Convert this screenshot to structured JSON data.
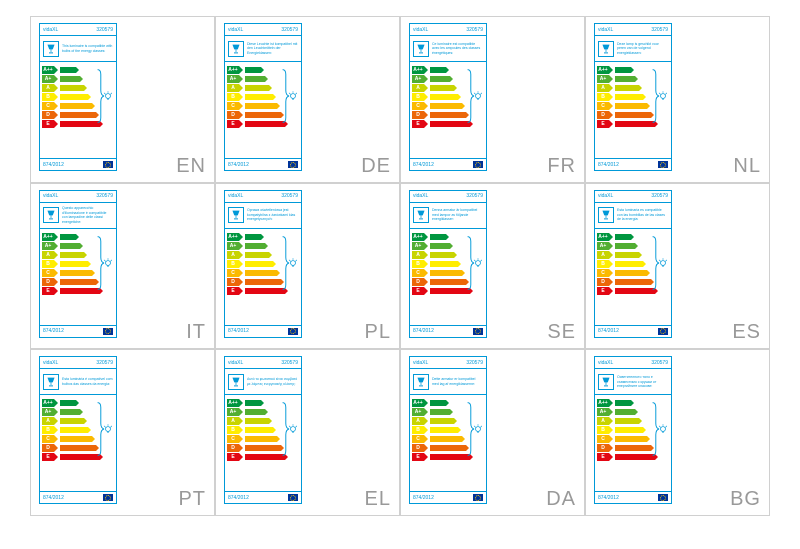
{
  "brand": "vidaXL",
  "product_code": "320579",
  "regulation": "874/2012",
  "energy_classes": [
    {
      "label": "A++",
      "badge_color": "#009640",
      "arrow_color": "#009640",
      "arrow_width": 16
    },
    {
      "label": "A+",
      "badge_color": "#52ae32",
      "arrow_color": "#52ae32",
      "arrow_width": 20
    },
    {
      "label": "A",
      "badge_color": "#c8d400",
      "arrow_color": "#c8d400",
      "arrow_width": 24
    },
    {
      "label": "B",
      "badge_color": "#ffed00",
      "arrow_color": "#ffed00",
      "arrow_width": 28
    },
    {
      "label": "C",
      "badge_color": "#fbba00",
      "arrow_color": "#fbba00",
      "arrow_width": 32
    },
    {
      "label": "D",
      "badge_color": "#ec6608",
      "arrow_color": "#ec6608",
      "arrow_width": 36
    },
    {
      "label": "E",
      "badge_color": "#e30613",
      "arrow_color": "#e30613",
      "arrow_width": 40
    }
  ],
  "cards": [
    {
      "lang": "EN",
      "text": "This luminaire is compatible with bulbs of the energy classes:"
    },
    {
      "lang": "DE",
      "text": "Diese Leuchte ist kompatibel mit den Leuchtmitteln der Energieklassen:"
    },
    {
      "lang": "FR",
      "text": "Ce luminaire est compatible avec les ampoules des classes énergétiques:"
    },
    {
      "lang": "NL",
      "text": "Deze lamp is geschikt voor peren van de volgend energieklassen:"
    },
    {
      "lang": "IT",
      "text": "Questo apparecchio d'illuminazione è compatibile con lampadine delle classi energetiche:"
    },
    {
      "lang": "PL",
      "text": "Oprawa oświetleniowa jest kompatybilna z żarówkami klas energetycznych:"
    },
    {
      "lang": "SE",
      "text": "Denna armatur är kompatibel med lampor av följande energiklasser:"
    },
    {
      "lang": "ES",
      "text": "Esta luminaria es compatible con las bombillas de las clases de la energía:"
    },
    {
      "lang": "PT",
      "text": "Esta luminária é compatível com bulbos das classes da energia:"
    },
    {
      "lang": "EL",
      "text": "Αυτό το φωτιστικό είναι συμβατό με λάμπες ενεργειακής κλάσης:"
    },
    {
      "lang": "DA",
      "text": "Dette armatur er kompatibel med lag af energiklasserne:"
    },
    {
      "lang": "BG",
      "text": "Осветителното тяло е съвместимо с крушки от енергийните класове:"
    }
  ],
  "colors": {
    "border": "#0099d8",
    "cell_border": "#d0d0d0",
    "lang_text": "#999999",
    "eu_blue": "#003399",
    "eu_gold": "#ffcc00",
    "background": "#ffffff"
  }
}
